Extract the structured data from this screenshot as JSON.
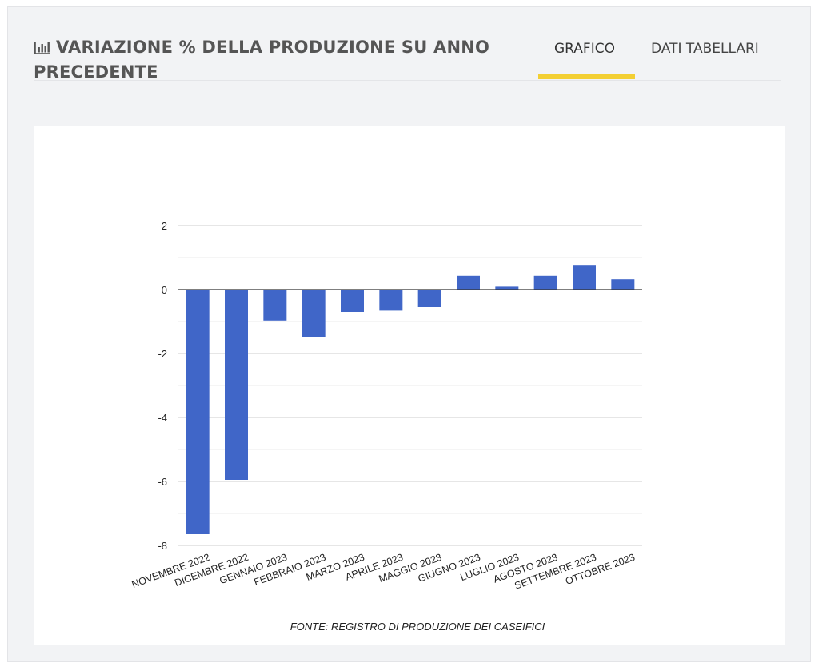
{
  "header": {
    "title": "VARIAZIONE % DELLA PRODUZIONE SU ANNO PRECEDENTE",
    "title_icon": "bar-chart-icon"
  },
  "tabs": [
    {
      "label": "GRAFICO",
      "active": true
    },
    {
      "label": "DATI TABELLARI",
      "active": false
    }
  ],
  "colors": {
    "bar": "#4066c8",
    "active_tab_underline": "#f3cf33",
    "panel_background": "#f2f3f5"
  },
  "chart_data": {
    "type": "bar",
    "categories": [
      "NOVEMBRE 2022",
      "DICEMBRE 2022",
      "GENNAIO 2023",
      "FEBBRAIO 2023",
      "MARZO 2023",
      "APRILE 2023",
      "MAGGIO 2023",
      "GIUGNO 2023",
      "LUGLIO 2023",
      "AGOSTO 2023",
      "SETTEMBRE 2023",
      "OTTOBRE 2023"
    ],
    "values": [
      -7.65,
      -5.95,
      -0.97,
      -1.49,
      -0.7,
      -0.66,
      -0.55,
      0.43,
      0.09,
      0.43,
      0.77,
      0.32
    ],
    "ylim": [
      -8,
      2
    ],
    "yticks": [
      2,
      0,
      -2,
      -4,
      -6,
      -8
    ],
    "grid": true,
    "legend": "none",
    "source_note": "FONTE: REGISTRO DI PRODUZIONE DEI CASEIFICI"
  }
}
